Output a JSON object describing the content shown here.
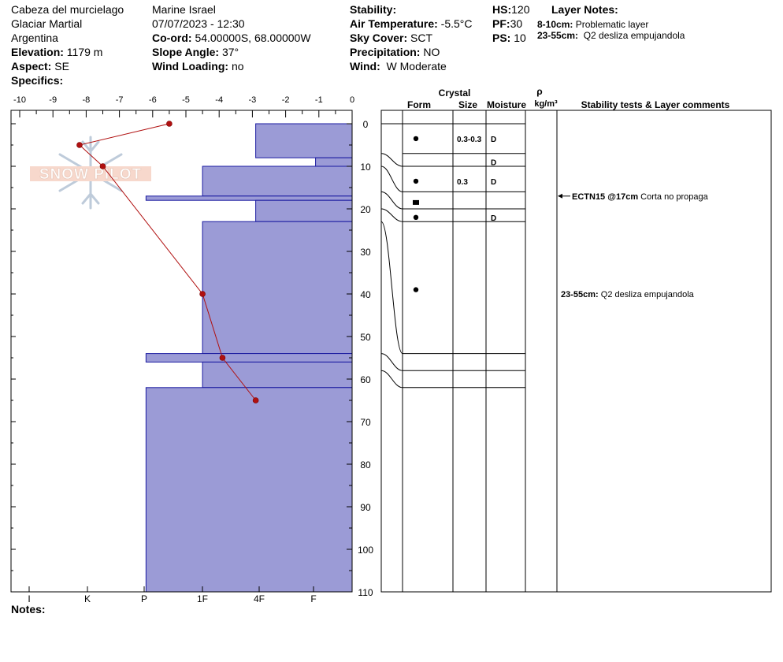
{
  "header": {
    "location": "Cabeza del murcielago",
    "area": "Glaciar Martial",
    "country": "Argentina",
    "elevation_label": "Elevation:",
    "elevation": "1179 m",
    "aspect_label": "Aspect:",
    "aspect": "SE",
    "specifics_label": "Specifics:",
    "observer": "Marine Israel",
    "datetime": "07/07/2023 - 12:30",
    "coord_label": "Co-ord:",
    "coord": "54.00000S, 68.00000W",
    "slope_label": "Slope Angle:",
    "slope": "37°",
    "wind_loading_label": "Wind Loading:",
    "wind_loading": "no",
    "stability_label": "Stability:",
    "air_temp_label": "Air Temperature:",
    "air_temp": "-5.5°C",
    "sky_label": "Sky Cover:",
    "sky": "SCT",
    "precip_label": "Precipitation:",
    "precip": "NO",
    "wind_label": "Wind:",
    "wind": "W Moderate",
    "hs_label": "HS:",
    "hs": "120",
    "pf_label": "PF:",
    "pf": "30",
    "ps_label": "PS:",
    "ps": "10",
    "layer_notes_title": "Layer Notes:",
    "layer_note_1_range": "8-10cm:",
    "layer_note_1_text": "Problematic layer",
    "layer_note_2_range": "23-55cm:",
    "layer_note_2_text": "Q2 desliza empujandola"
  },
  "watermark": "SNOW PILOT",
  "notes_label": "Notes:",
  "table_headers": {
    "crystal": "Crystal",
    "form": "Form",
    "size": "Size",
    "moisture": "Moisture",
    "rho": "ρ",
    "density_unit": "kg/m³",
    "comments": "Stability tests & Layer comments"
  },
  "colors": {
    "hardness_fill": "#9b9bd6",
    "hardness_stroke": "#1a1aa0",
    "temperature": "#b01010"
  },
  "chart_data": {
    "type": "snow-profile",
    "temperature_axis": {
      "ticks": [
        -10,
        -9,
        -8,
        -7,
        -6,
        -5,
        -4,
        -3,
        -2,
        -1,
        0
      ],
      "range": [
        -10,
        0
      ]
    },
    "depth_axis": {
      "ticks": [
        0,
        10,
        20,
        30,
        40,
        50,
        60,
        70,
        80,
        90,
        100,
        110
      ],
      "range": [
        0,
        110
      ]
    },
    "hardness_axis": {
      "labels": [
        "I",
        "K",
        "P",
        "1F",
        "4F",
        "F"
      ]
    },
    "temperature_profile": [
      {
        "depth": 0,
        "temp": -5.5
      },
      {
        "depth": 5,
        "temp": -8.2
      },
      {
        "depth": 10,
        "temp": -7.5
      },
      {
        "depth": 40,
        "temp": -4.5
      },
      {
        "depth": 55,
        "temp": -3.9
      },
      {
        "depth": 65,
        "temp": -2.9
      }
    ],
    "hardness_layers": [
      {
        "top": 0,
        "bottom": 8,
        "temp_equiv": -2.9
      },
      {
        "top": 8,
        "bottom": 10,
        "temp_equiv": -1.1
      },
      {
        "top": 10,
        "bottom": 17,
        "temp_equiv": -4.5
      },
      {
        "top": 17,
        "bottom": 18,
        "temp_equiv": -6.2
      },
      {
        "top": 18,
        "bottom": 23,
        "temp_equiv": -2.9
      },
      {
        "top": 23,
        "bottom": 54,
        "temp_equiv": -4.5
      },
      {
        "top": 54,
        "bottom": 56,
        "temp_equiv": -6.2
      },
      {
        "top": 56,
        "bottom": 62,
        "temp_equiv": -4.5
      },
      {
        "top": 62,
        "bottom": 110,
        "temp_equiv": -6.2
      }
    ],
    "layer_boundaries": [
      0,
      7,
      10,
      16,
      20,
      23,
      54,
      58,
      62
    ],
    "layers": [
      {
        "depth": 3.5,
        "form": "dot",
        "size": "0.3-0.3",
        "moisture": "D"
      },
      {
        "depth": 9,
        "form": "",
        "size": "",
        "moisture": "D"
      },
      {
        "depth": 13.5,
        "form": "dot",
        "size": "0.3",
        "moisture": "D"
      },
      {
        "depth": 18.5,
        "form": "square",
        "size": "",
        "moisture": ""
      },
      {
        "depth": 22,
        "form": "dot",
        "size": "",
        "moisture": "D"
      },
      {
        "depth": 39,
        "form": "dot",
        "size": "",
        "moisture": ""
      }
    ],
    "comments": [
      {
        "depth": 17,
        "arrow": true,
        "bold": "ECTN15 @17cm",
        "text": "Corta no propaga"
      },
      {
        "depth": 40,
        "arrow": false,
        "bold": "23-55cm:",
        "text": "Q2 desliza empujandola"
      }
    ]
  }
}
